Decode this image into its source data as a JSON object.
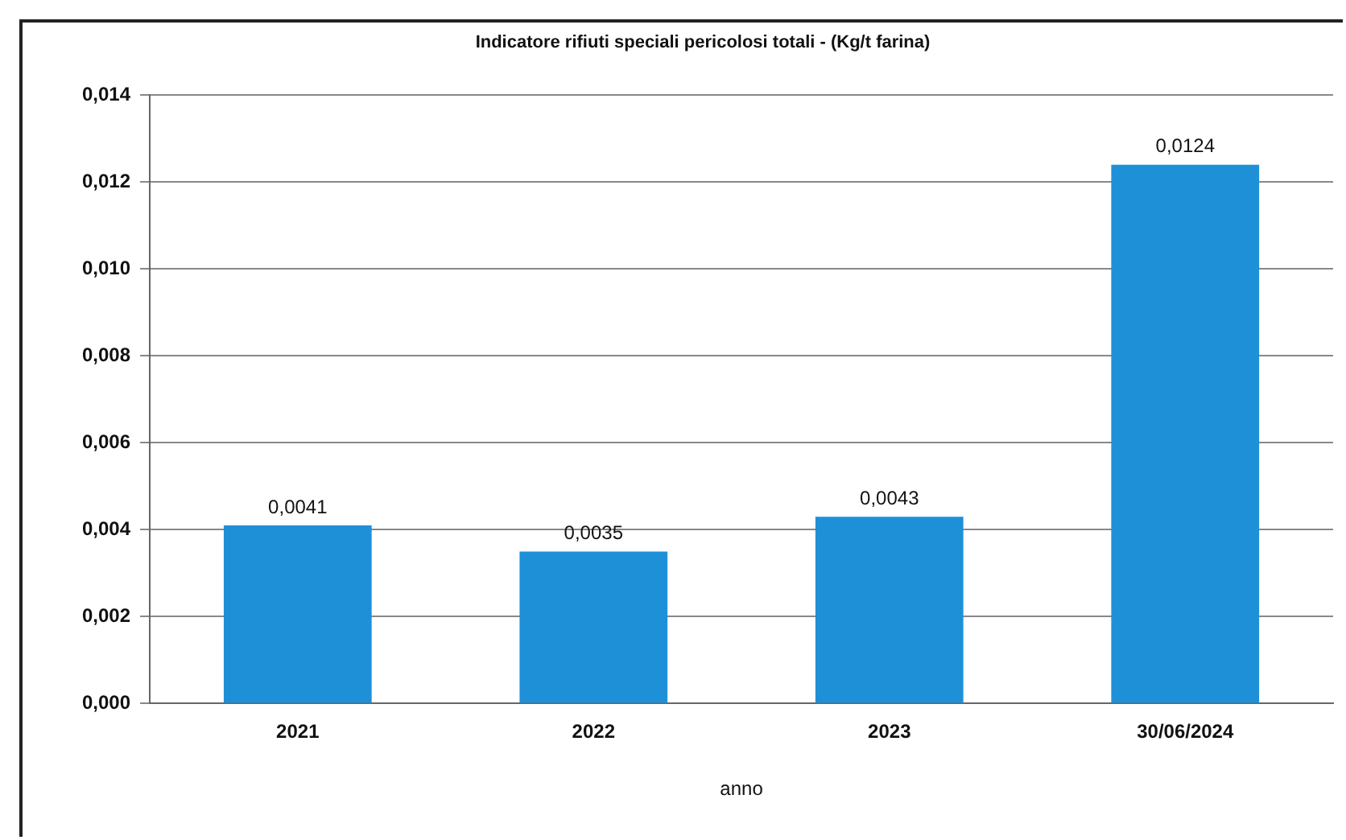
{
  "chart_data": {
    "type": "bar",
    "title": "Indicatore rifiuti speciali pericolosi totali - (Kg/t farina)",
    "xlabel": "anno",
    "categories": [
      "2021",
      "2022",
      "2023",
      "30/06/2024"
    ],
    "values": [
      0.0041,
      0.0035,
      0.0043,
      0.0124
    ],
    "value_labels": [
      "0,0041",
      "0,0035",
      "0,0043",
      "0,0124"
    ],
    "color": "#1e90d8",
    "ylim": [
      0,
      0.014
    ],
    "yticks": [
      {
        "value": 0,
        "label": "0,000"
      },
      {
        "value": 0.002,
        "label": "0,002"
      },
      {
        "value": 0.004,
        "label": "0,004"
      },
      {
        "value": 0.006,
        "label": "0,006"
      },
      {
        "value": 0.008,
        "label": "0,008"
      },
      {
        "value": 0.01,
        "label": "0,010"
      },
      {
        "value": 0.012,
        "label": "0,012"
      },
      {
        "value": 0.014,
        "label": "0,014"
      }
    ],
    "grid": "y",
    "legend": false
  }
}
